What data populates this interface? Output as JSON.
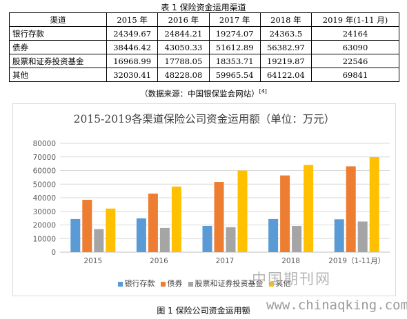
{
  "table": {
    "title": "表 1  保险资金运用渠道",
    "headers": [
      "渠道",
      "2015 年",
      "2016 年",
      "2017 年",
      "2018 年",
      "2019 年(1-11 月)"
    ],
    "rows": [
      {
        "name": "银行存款",
        "values": [
          "24349.67",
          "24844.21",
          "19274.07",
          "24363.5",
          "24164"
        ]
      },
      {
        "name": "债券",
        "values": [
          "38446.42",
          "43050.33",
          "51612.89",
          "56382.97",
          "63090"
        ]
      },
      {
        "name": "股票和证券投资基金",
        "values": [
          "16968.99",
          "17788.05",
          "18353.71",
          "19219.87",
          "22546"
        ]
      },
      {
        "name": "其他",
        "values": [
          "32030.41",
          "48228.08",
          "59965.54",
          "64122.04",
          "69841"
        ]
      }
    ],
    "source": "（数据来源：中国银保监会网站）",
    "source_ref": "[4]"
  },
  "chart_data": {
    "type": "bar",
    "title": "2015-2019各渠道保险公司资金运用额（单位：万元）",
    "categories": [
      "2015",
      "2016",
      "2017",
      "2018",
      "2019（1-11月）"
    ],
    "series": [
      {
        "name": "银行存款",
        "color": "#5B9BD5",
        "values": [
          24349.67,
          24844.21,
          19274.07,
          24363.5,
          24164
        ]
      },
      {
        "name": "债券",
        "color": "#ED7D31",
        "values": [
          38446.42,
          43050.33,
          51612.89,
          56382.97,
          63090
        ]
      },
      {
        "name": "股票和证券投资基金",
        "color": "#A5A5A5",
        "values": [
          16968.99,
          17788.05,
          18353.71,
          19219.87,
          22546
        ]
      },
      {
        "name": "其他",
        "color": "#FFC000",
        "values": [
          32030.41,
          48228.08,
          59965.54,
          64122.04,
          69841
        ]
      }
    ],
    "ylim": [
      0,
      80000
    ],
    "yticks": [
      0,
      10000,
      20000,
      30000,
      40000,
      50000,
      60000,
      70000,
      80000
    ],
    "grid": true,
    "legend_position": "bottom"
  },
  "watermark": {
    "cn": "中国期刊网",
    "url": "www.chinaqking.com"
  },
  "caption": "图 1  保险公司资金运用额"
}
